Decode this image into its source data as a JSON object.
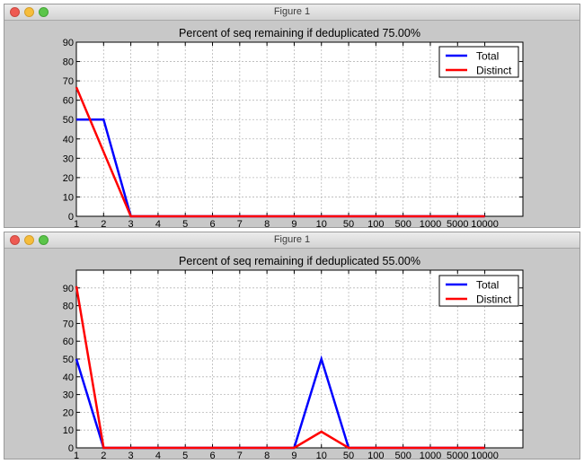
{
  "windows": [
    {
      "title": "Figure 1"
    },
    {
      "title": "Figure 1"
    }
  ],
  "chart_data": [
    {
      "type": "line",
      "title": "Percent of seq remaining if deduplicated 75.00%",
      "xlabel": "",
      "ylabel": "",
      "categories": [
        "1",
        "2",
        "3",
        "4",
        "5",
        "6",
        "7",
        "8",
        "9",
        "10",
        "50",
        "100",
        "500",
        "1000",
        "5000",
        "10000"
      ],
      "ylim": [
        0,
        90
      ],
      "yticks": [
        0,
        10,
        20,
        30,
        40,
        50,
        60,
        70,
        80,
        90
      ],
      "grid": true,
      "legend_position": "top-right",
      "series": [
        {
          "name": "Total",
          "color": "#0000ff",
          "values": [
            50,
            50,
            0,
            0,
            0,
            0,
            0,
            0,
            0,
            0,
            0,
            0,
            0,
            0,
            0,
            0
          ]
        },
        {
          "name": "Distinct",
          "color": "#ff0000",
          "values": [
            66.7,
            33.3,
            0,
            0,
            0,
            0,
            0,
            0,
            0,
            0,
            0,
            0,
            0,
            0,
            0,
            0
          ]
        }
      ]
    },
    {
      "type": "line",
      "title": "Percent of seq remaining if deduplicated 55.00%",
      "xlabel": "",
      "ylabel": "",
      "categories": [
        "1",
        "2",
        "3",
        "4",
        "5",
        "6",
        "7",
        "8",
        "9",
        "10",
        "50",
        "100",
        "500",
        "1000",
        "5000",
        "10000"
      ],
      "ylim": [
        0,
        100
      ],
      "yticks": [
        0,
        10,
        20,
        30,
        40,
        50,
        60,
        70,
        80,
        90
      ],
      "grid": true,
      "legend_position": "top-right",
      "series": [
        {
          "name": "Total",
          "color": "#0000ff",
          "values": [
            50,
            0,
            0,
            0,
            0,
            0,
            0,
            0,
            0,
            50,
            0,
            0,
            0,
            0,
            0,
            0
          ]
        },
        {
          "name": "Distinct",
          "color": "#ff0000",
          "values": [
            90.9,
            0,
            0,
            0,
            0,
            0,
            0,
            0,
            0,
            9.1,
            0,
            0,
            0,
            0,
            0,
            0
          ]
        }
      ]
    }
  ]
}
